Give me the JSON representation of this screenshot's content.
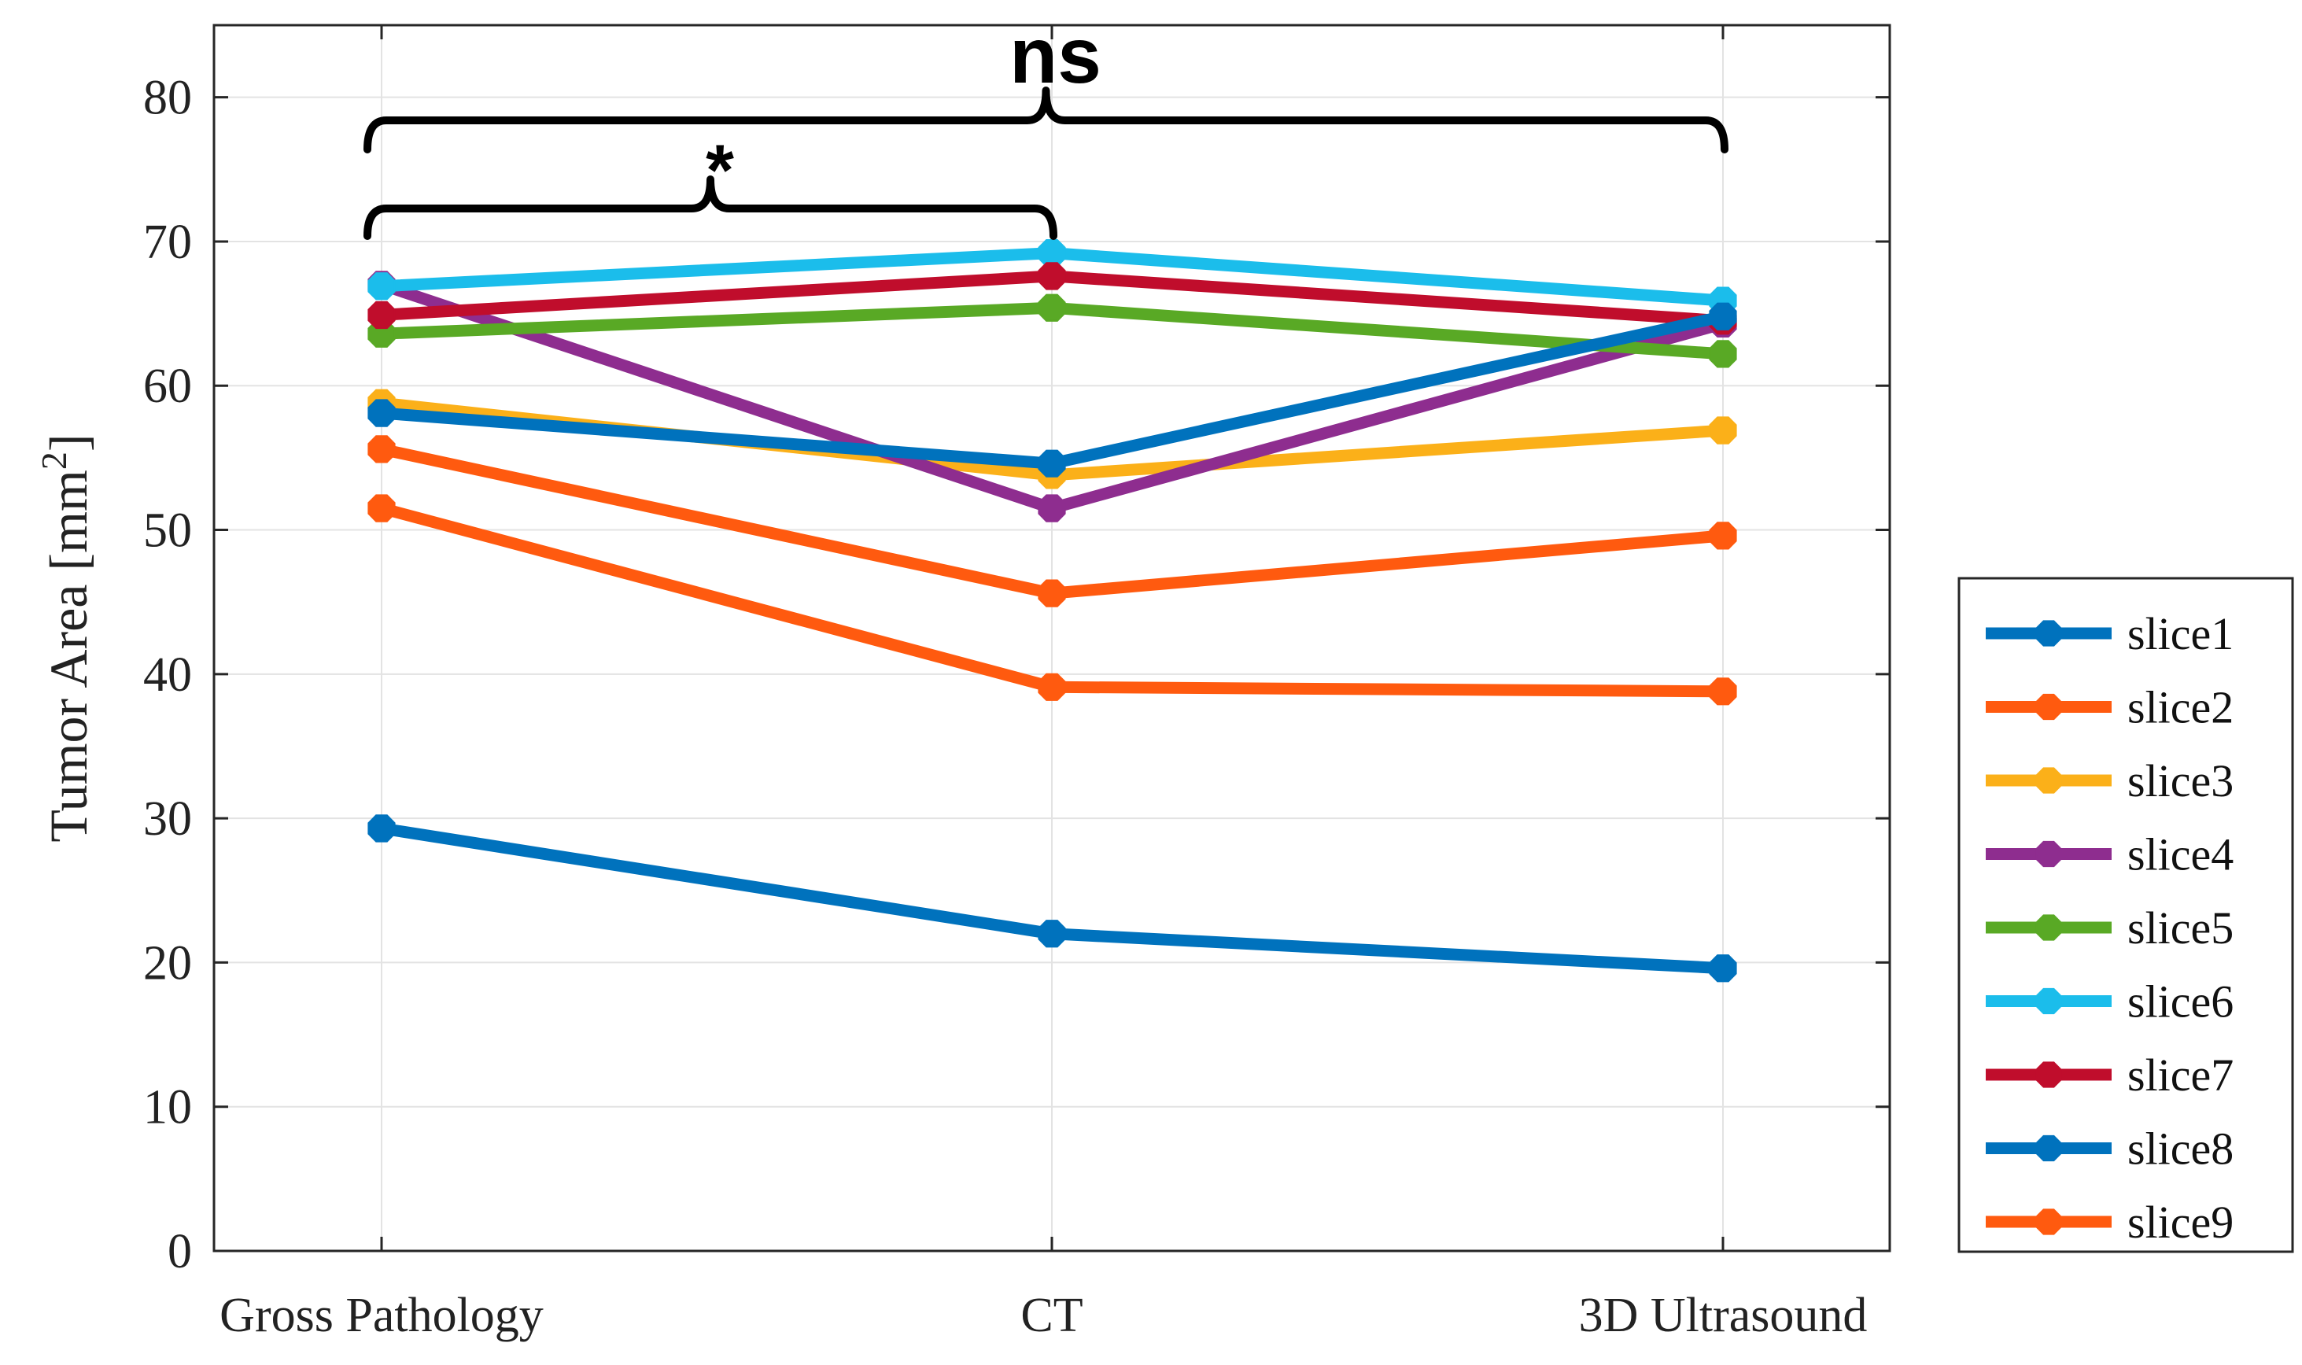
{
  "chart_data": {
    "type": "line",
    "title": "",
    "xlabel": "",
    "ylabel": "Tumor Area [mm",
    "ylabel_superscript": "2",
    "ylabel_suffix": "]",
    "categories": [
      "Gross Pathology",
      "CT",
      "3D Ultrasound"
    ],
    "ylim": [
      0,
      85
    ],
    "yticks": [
      "0",
      "10",
      "20",
      "30",
      "40",
      "50",
      "60",
      "70",
      "80"
    ],
    "grid": true,
    "legend_position": "right",
    "series": [
      {
        "name": "slice1",
        "color": "#0072BD",
        "values": [
          29.3,
          22.0,
          19.6
        ]
      },
      {
        "name": "slice2",
        "color": "#FF5A0F",
        "values": [
          51.5,
          39.1,
          38.8
        ]
      },
      {
        "name": "slice3",
        "color": "#FBB019",
        "values": [
          58.8,
          53.8,
          56.9
        ]
      },
      {
        "name": "slice4",
        "color": "#8E2D8F",
        "values": [
          67.0,
          51.5,
          64.3
        ]
      },
      {
        "name": "slice5",
        "color": "#59A925",
        "values": [
          63.6,
          65.4,
          62.2
        ]
      },
      {
        "name": "slice6",
        "color": "#1BBDEB",
        "values": [
          66.9,
          69.2,
          65.9
        ]
      },
      {
        "name": "slice7",
        "color": "#C00D2C",
        "values": [
          64.9,
          67.6,
          64.5
        ]
      },
      {
        "name": "slice8",
        "color": "#0072BD",
        "values": [
          58.1,
          54.6,
          64.8
        ]
      },
      {
        "name": "slice9",
        "color": "#FF5A0F",
        "values": [
          55.6,
          45.6,
          49.6
        ]
      }
    ],
    "annotations": [
      {
        "label": "ns",
        "from": "Gross Pathology",
        "to": "3D Ultrasound"
      },
      {
        "label": "*",
        "from": "Gross Pathology",
        "to": "CT"
      }
    ]
  }
}
